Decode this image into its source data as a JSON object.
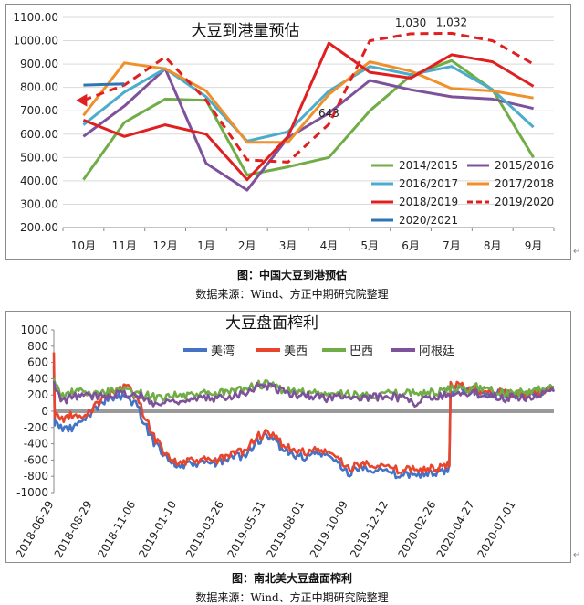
{
  "figures": [
    {
      "caption": "图：中国大豆到港预估",
      "source": "数据来源：Wind、方正中期研究院整理"
    },
    {
      "caption": "图：南北美大豆盘面榨利",
      "source": "数据来源：Wind、方正中期研究院整理"
    }
  ],
  "chart_data": [
    {
      "type": "line",
      "title": "大豆到港量预估",
      "categories": [
        "10月",
        "11月",
        "12月",
        "1月",
        "2月",
        "3月",
        "4月",
        "5月",
        "6月",
        "7月",
        "8月",
        "9月"
      ],
      "ylim": [
        200,
        1100
      ],
      "yticks": [
        "200.00",
        "300.00",
        "400.00",
        "500.00",
        "600.00",
        "700.00",
        "800.00",
        "900.00",
        "1000.00",
        "1100.00"
      ],
      "annotations": [
        {
          "text": "643",
          "category": "4月",
          "value": 643
        },
        {
          "text": "1,030",
          "category": "6月",
          "value": 1030
        },
        {
          "text": "1,032",
          "category": "7月",
          "value": 1032
        }
      ],
      "legend_position": "bottom-right",
      "series": [
        {
          "name": "2014/2015",
          "color": "#70ad47",
          "dashed": false,
          "values": [
            405,
            650,
            750,
            745,
            425,
            460,
            500,
            700,
            850,
            915,
            790,
            500
          ]
        },
        {
          "name": "2015/2016",
          "color": "#7e519b",
          "dashed": false,
          "values": [
            590,
            720,
            880,
            475,
            360,
            585,
            690,
            830,
            790,
            760,
            750,
            710
          ]
        },
        {
          "name": "2016/2017",
          "color": "#4baccc",
          "dashed": false,
          "values": [
            640,
            780,
            880,
            760,
            570,
            610,
            785,
            890,
            855,
            890,
            790,
            630
          ]
        },
        {
          "name": "2017/2018",
          "color": "#f0902a",
          "dashed": false,
          "values": [
            680,
            905,
            880,
            785,
            565,
            565,
            770,
            910,
            870,
            795,
            785,
            755
          ]
        },
        {
          "name": "2018/2019",
          "color": "#e02020",
          "dashed": false,
          "values": [
            660,
            590,
            640,
            600,
            405,
            590,
            990,
            865,
            840,
            940,
            910,
            805
          ]
        },
        {
          "name": "2019/2020",
          "color": "#e02020",
          "dashed": true,
          "values": [
            745,
            810,
            930,
            745,
            490,
            480,
            643,
            1000,
            1030,
            1032,
            1000,
            900
          ]
        },
        {
          "name": "2020/2021",
          "color": "#2e75b6",
          "dashed": false,
          "values": [
            810,
            815,
            null,
            null,
            null,
            null,
            null,
            null,
            null,
            null,
            null,
            null
          ]
        }
      ]
    },
    {
      "type": "line",
      "title": "大豆盘面榨利",
      "ylim": [
        -1000,
        1000
      ],
      "yticks": [
        "-1000",
        "-800",
        "-600",
        "-400",
        "-200",
        "0",
        "200",
        "400",
        "600",
        "800",
        "1000"
      ],
      "x_start": "2018-06-29",
      "x_end": "2020-08-31",
      "xticks": [
        "2018-06-29",
        "2018-08-29",
        "2018-11-06",
        "2019-01-10",
        "2019-03-26",
        "2019-05-31",
        "2019-08-01",
        "2019-10-09",
        "2019-12-12",
        "2020-02-26",
        "2020-04-27",
        "2020-07-01"
      ],
      "legend_position": "top",
      "series": [
        {
          "name": "美湾",
          "color": "#4472c4",
          "points": [
            [
              "2018-06-29",
              550
            ],
            [
              "2018-07-02",
              -150
            ],
            [
              "2018-07-10",
              -200
            ],
            [
              "2018-07-25",
              -220
            ],
            [
              "2018-08-10",
              -150
            ],
            [
              "2018-08-29",
              0
            ],
            [
              "2018-09-20",
              150
            ],
            [
              "2018-10-10",
              180
            ],
            [
              "2018-10-25",
              150
            ],
            [
              "2018-11-06",
              100
            ],
            [
              "2018-11-20",
              -150
            ],
            [
              "2018-12-05",
              -380
            ],
            [
              "2018-12-25",
              -550
            ],
            [
              "2019-01-10",
              -680
            ],
            [
              "2019-01-30",
              -660
            ],
            [
              "2019-02-20",
              -640
            ],
            [
              "2019-03-10",
              -640
            ],
            [
              "2019-03-26",
              -620
            ],
            [
              "2019-04-10",
              -560
            ],
            [
              "2019-04-30",
              -540
            ],
            [
              "2019-05-15",
              -380
            ],
            [
              "2019-05-31",
              -320
            ],
            [
              "2019-06-15",
              -360
            ],
            [
              "2019-07-01",
              -480
            ],
            [
              "2019-07-15",
              -560
            ],
            [
              "2019-08-01",
              -560
            ],
            [
              "2019-08-20",
              -520
            ],
            [
              "2019-09-05",
              -540
            ],
            [
              "2019-09-20",
              -620
            ],
            [
              "2019-10-09",
              -760
            ],
            [
              "2019-10-25",
              -700
            ],
            [
              "2019-11-10",
              -700
            ],
            [
              "2019-11-25",
              -710
            ],
            [
              "2019-12-12",
              -760
            ],
            [
              "2020-01-05",
              -800
            ],
            [
              "2020-01-20",
              -760
            ],
            [
              "2020-02-10",
              -780
            ],
            [
              "2020-02-26",
              -750
            ],
            [
              "2020-03-10",
              -760
            ],
            [
              "2020-03-18",
              -700
            ],
            [
              "2020-03-22",
              250
            ],
            [
              "2020-04-10",
              280
            ],
            [
              "2020-04-27",
              250
            ],
            [
              "2020-05-15",
              200
            ],
            [
              "2020-06-01",
              230
            ],
            [
              "2020-06-15",
              220
            ],
            [
              "2020-07-01",
              200
            ],
            [
              "2020-07-20",
              190
            ],
            [
              "2020-08-10",
              230
            ],
            [
              "2020-08-31",
              260
            ]
          ]
        },
        {
          "name": "美西",
          "color": "#e8452c",
          "points": [
            [
              "2018-06-29",
              720
            ],
            [
              "2018-07-02",
              -50
            ],
            [
              "2018-07-12",
              -100
            ],
            [
              "2018-07-28",
              -50
            ],
            [
              "2018-08-12",
              -100
            ],
            [
              "2018-08-29",
              30
            ],
            [
              "2018-09-20",
              200
            ],
            [
              "2018-10-15",
              280
            ],
            [
              "2018-10-25",
              300
            ],
            [
              "2018-11-06",
              180
            ],
            [
              "2018-11-20",
              -50
            ],
            [
              "2018-12-05",
              -320
            ],
            [
              "2018-12-25",
              -520
            ],
            [
              "2019-01-10",
              -640
            ],
            [
              "2019-01-30",
              -620
            ],
            [
              "2019-02-20",
              -600
            ],
            [
              "2019-03-10",
              -610
            ],
            [
              "2019-03-26",
              -580
            ],
            [
              "2019-04-10",
              -520
            ],
            [
              "2019-04-30",
              -480
            ],
            [
              "2019-05-15",
              -320
            ],
            [
              "2019-05-31",
              -280
            ],
            [
              "2019-06-15",
              -320
            ],
            [
              "2019-07-01",
              -420
            ],
            [
              "2019-07-15",
              -500
            ],
            [
              "2019-08-01",
              -500
            ],
            [
              "2019-08-20",
              -480
            ],
            [
              "2019-09-05",
              -500
            ],
            [
              "2019-09-20",
              -560
            ],
            [
              "2019-10-09",
              -700
            ],
            [
              "2019-10-25",
              -660
            ],
            [
              "2019-11-10",
              -640
            ],
            [
              "2019-11-25",
              -650
            ],
            [
              "2019-12-12",
              -700
            ],
            [
              "2020-01-05",
              -740
            ],
            [
              "2020-01-20",
              -700
            ],
            [
              "2020-02-10",
              -720
            ],
            [
              "2020-02-26",
              -700
            ],
            [
              "2020-03-10",
              -700
            ],
            [
              "2020-03-18",
              -650
            ],
            [
              "2020-03-22",
              320
            ],
            [
              "2020-04-10",
              300
            ],
            [
              "2020-04-27",
              270
            ],
            [
              "2020-05-15",
              230
            ],
            [
              "2020-06-01",
              250
            ],
            [
              "2020-06-15",
              230
            ],
            [
              "2020-07-01",
              210
            ],
            [
              "2020-07-20",
              200
            ],
            [
              "2020-08-10",
              240
            ],
            [
              "2020-08-31",
              280
            ]
          ]
        },
        {
          "name": "巴西",
          "color": "#70ad47",
          "points": [
            [
              "2018-06-29",
              400
            ],
            [
              "2018-07-10",
              180
            ],
            [
              "2018-07-25",
              220
            ],
            [
              "2018-08-10",
              250
            ],
            [
              "2018-08-29",
              200
            ],
            [
              "2018-09-20",
              240
            ],
            [
              "2018-10-10",
              260
            ],
            [
              "2018-10-25",
              250
            ],
            [
              "2018-11-06",
              220
            ],
            [
              "2018-11-25",
              200
            ],
            [
              "2018-12-10",
              160
            ],
            [
              "2018-12-25",
              200
            ],
            [
              "2019-01-10",
              200
            ],
            [
              "2019-01-30",
              180
            ],
            [
              "2019-02-20",
              220
            ],
            [
              "2019-03-10",
              200
            ],
            [
              "2019-03-26",
              230
            ],
            [
              "2019-04-10",
              240
            ],
            [
              "2019-04-30",
              280
            ],
            [
              "2019-05-15",
              320
            ],
            [
              "2019-05-31",
              330
            ],
            [
              "2019-06-15",
              300
            ],
            [
              "2019-07-01",
              260
            ],
            [
              "2019-07-15",
              240
            ],
            [
              "2019-08-01",
              230
            ],
            [
              "2019-08-20",
              220
            ],
            [
              "2019-09-05",
              200
            ],
            [
              "2019-09-20",
              210
            ],
            [
              "2019-10-09",
              220
            ],
            [
              "2019-10-25",
              190
            ],
            [
              "2019-11-10",
              200
            ],
            [
              "2019-11-25",
              210
            ],
            [
              "2019-12-12",
              220
            ],
            [
              "2020-01-05",
              200
            ],
            [
              "2020-01-20",
              240
            ],
            [
              "2020-02-10",
              220
            ],
            [
              "2020-02-26",
              230
            ],
            [
              "2020-03-10",
              240
            ],
            [
              "2020-03-22",
              280
            ],
            [
              "2020-04-10",
              260
            ],
            [
              "2020-04-27",
              300
            ],
            [
              "2020-05-15",
              280
            ],
            [
              "2020-06-01",
              260
            ],
            [
              "2020-06-15",
              220
            ],
            [
              "2020-07-01",
              240
            ],
            [
              "2020-07-20",
              220
            ],
            [
              "2020-08-10",
              260
            ],
            [
              "2020-08-31",
              300
            ]
          ]
        },
        {
          "name": "阿根廷",
          "color": "#7e519b",
          "points": [
            [
              "2018-06-29",
              350
            ],
            [
              "2018-07-10",
              120
            ],
            [
              "2018-07-25",
              160
            ],
            [
              "2018-08-10",
              200
            ],
            [
              "2018-08-29",
              180
            ],
            [
              "2018-09-20",
              200
            ],
            [
              "2018-10-10",
              220
            ],
            [
              "2018-10-25",
              210
            ],
            [
              "2018-11-06",
              200
            ],
            [
              "2018-11-25",
              150
            ],
            [
              "2018-12-10",
              80
            ],
            [
              "2018-12-25",
              120
            ],
            [
              "2019-01-10",
              140
            ],
            [
              "2019-01-30",
              120
            ],
            [
              "2019-02-20",
              160
            ],
            [
              "2019-03-10",
              150
            ],
            [
              "2019-03-26",
              180
            ],
            [
              "2019-04-10",
              200
            ],
            [
              "2019-04-30",
              240
            ],
            [
              "2019-05-15",
              300
            ],
            [
              "2019-05-31",
              320
            ],
            [
              "2019-06-15",
              290
            ],
            [
              "2019-07-01",
              240
            ],
            [
              "2019-07-15",
              200
            ],
            [
              "2019-08-01",
              200
            ],
            [
              "2019-08-20",
              180
            ],
            [
              "2019-09-05",
              160
            ],
            [
              "2019-09-20",
              180
            ],
            [
              "2019-10-09",
              200
            ],
            [
              "2019-10-25",
              150
            ],
            [
              "2019-11-10",
              160
            ],
            [
              "2019-11-25",
              180
            ],
            [
              "2019-12-12",
              200
            ],
            [
              "2020-01-05",
              150
            ],
            [
              "2020-01-20",
              100
            ],
            [
              "2020-02-10",
              150
            ],
            [
              "2020-02-26",
              180
            ],
            [
              "2020-03-10",
              200
            ],
            [
              "2020-03-22",
              220
            ],
            [
              "2020-04-10",
              200
            ],
            [
              "2020-04-27",
              220
            ],
            [
              "2020-05-15",
              200
            ],
            [
              "2020-06-01",
              190
            ],
            [
              "2020-06-15",
              160
            ],
            [
              "2020-07-01",
              180
            ],
            [
              "2020-07-20",
              170
            ],
            [
              "2020-08-10",
              200
            ],
            [
              "2020-08-31",
              240
            ]
          ]
        }
      ]
    }
  ]
}
